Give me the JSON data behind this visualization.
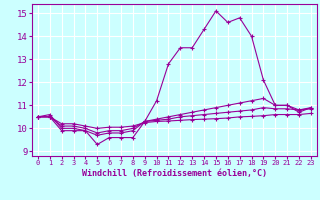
{
  "x": [
    0,
    1,
    2,
    3,
    4,
    5,
    6,
    7,
    8,
    9,
    10,
    11,
    12,
    13,
    14,
    15,
    16,
    17,
    18,
    19,
    20,
    21,
    22,
    23
  ],
  "line1": [
    10.5,
    10.5,
    9.9,
    9.9,
    9.9,
    9.3,
    9.6,
    9.6,
    9.6,
    10.3,
    11.2,
    12.8,
    13.5,
    13.5,
    14.3,
    15.1,
    14.6,
    14.8,
    14.0,
    12.1,
    11.0,
    11.0,
    10.7,
    10.9
  ],
  "line2": [
    10.5,
    10.6,
    10.0,
    10.0,
    9.9,
    9.7,
    9.8,
    9.8,
    9.9,
    10.3,
    10.4,
    10.5,
    10.6,
    10.7,
    10.8,
    10.9,
    11.0,
    11.1,
    11.2,
    11.3,
    11.0,
    11.0,
    10.8,
    10.9
  ],
  "line3": [
    10.5,
    10.5,
    10.1,
    10.1,
    10.0,
    9.8,
    9.9,
    9.9,
    10.0,
    10.3,
    10.35,
    10.4,
    10.5,
    10.55,
    10.6,
    10.65,
    10.7,
    10.75,
    10.8,
    10.9,
    10.85,
    10.85,
    10.8,
    10.85
  ],
  "line4": [
    10.5,
    10.5,
    10.2,
    10.2,
    10.1,
    10.0,
    10.05,
    10.05,
    10.1,
    10.25,
    10.3,
    10.32,
    10.35,
    10.38,
    10.4,
    10.42,
    10.45,
    10.5,
    10.52,
    10.55,
    10.6,
    10.6,
    10.6,
    10.65
  ],
  "line_color": "#990099",
  "bg_color": "#ccffff",
  "grid_color": "#ffffff",
  "xlabel": "Windchill (Refroidissement éolien,°C)",
  "ylim": [
    8.8,
    15.4
  ],
  "xlim": [
    -0.5,
    23.5
  ],
  "yticks": [
    9,
    10,
    11,
    12,
    13,
    14,
    15
  ],
  "xticks": [
    0,
    1,
    2,
    3,
    4,
    5,
    6,
    7,
    8,
    9,
    10,
    11,
    12,
    13,
    14,
    15,
    16,
    17,
    18,
    19,
    20,
    21,
    22,
    23
  ]
}
